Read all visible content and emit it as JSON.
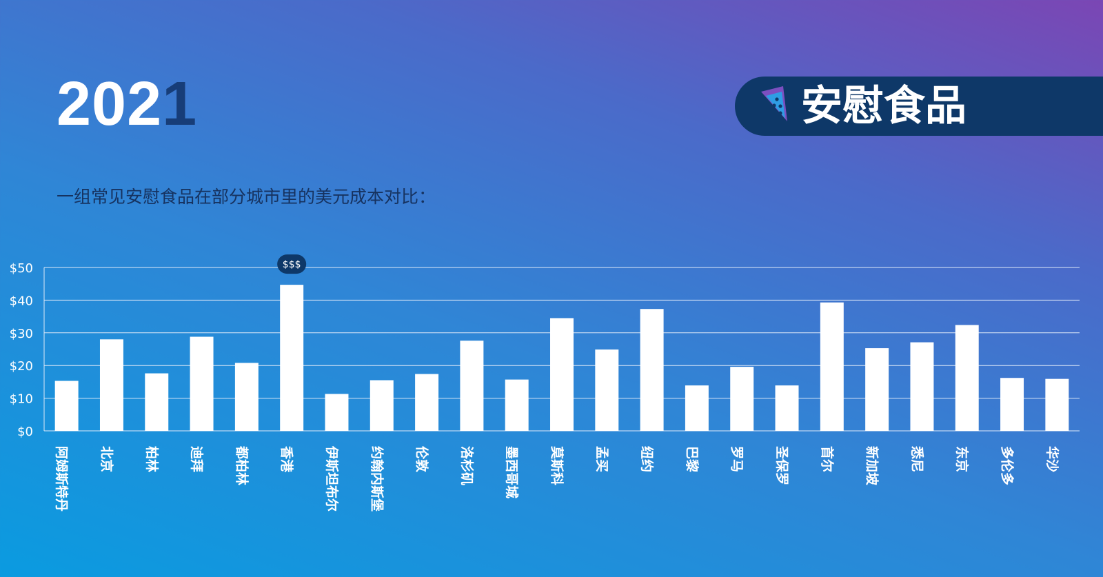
{
  "header": {
    "year_part1": "202",
    "year_part2": "1",
    "banner_title": "安慰食品",
    "banner_icon": "pizza-slice-icon",
    "subtitle": "一组常见安慰食品在部分城市里的美元成本对比："
  },
  "colors": {
    "banner_bg": "#0e3868",
    "year_accent": "#173d78",
    "bar": "#ffffff",
    "badge_bg": "#0e3868"
  },
  "chart_data": {
    "type": "bar",
    "categories": [
      "阿姆斯特丹",
      "北京",
      "柏林",
      "迪拜",
      "都柏林",
      "香港",
      "伊斯坦布尔",
      "约翰内斯堡",
      "伦敦",
      "洛杉矶",
      "墨西哥城",
      "莫斯科",
      "孟买",
      "纽约",
      "巴黎",
      "罗马",
      "圣保罗",
      "首尔",
      "新加坡",
      "悉尼",
      "东京",
      "多伦多",
      "华沙"
    ],
    "values": [
      15.3,
      28.0,
      17.6,
      28.8,
      20.8,
      44.7,
      11.3,
      15.5,
      17.4,
      27.6,
      15.7,
      34.5,
      24.9,
      37.3,
      13.9,
      19.6,
      13.9,
      39.3,
      25.3,
      27.1,
      32.4,
      16.2,
      15.9
    ],
    "yticks": [
      "$0",
      "$10",
      "$20",
      "$30",
      "$40",
      "$50"
    ],
    "ylim": [
      0,
      50
    ],
    "grid": true,
    "highlight": {
      "category": "香港",
      "label": "$$$"
    }
  }
}
